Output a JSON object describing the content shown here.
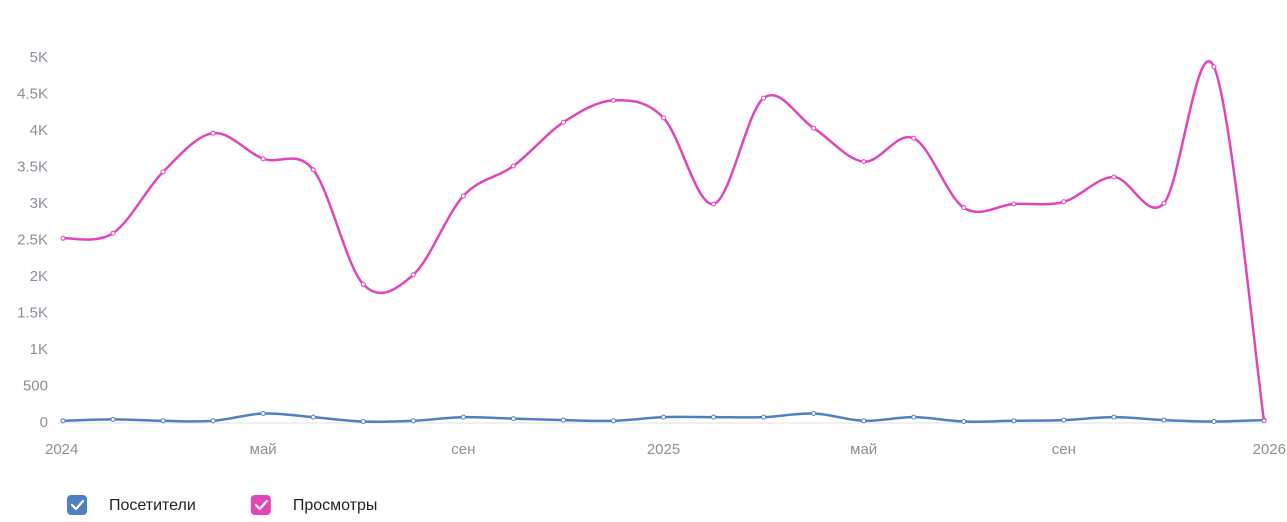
{
  "chart_data": {
    "type": "line",
    "categories": [
      "2024",
      null,
      null,
      null,
      "май",
      null,
      null,
      null,
      "сен",
      null,
      null,
      null,
      "2025",
      null,
      null,
      null,
      "май",
      null,
      null,
      null,
      "сен",
      null,
      null,
      null,
      "2026"
    ],
    "series": [
      {
        "name": "Посетители",
        "color": "#5080bf",
        "values": [
          30,
          50,
          30,
          30,
          130,
          80,
          20,
          30,
          80,
          60,
          40,
          30,
          80,
          80,
          80,
          130,
          30,
          80,
          20,
          30,
          40,
          80,
          40,
          20,
          40
        ]
      },
      {
        "name": "Просмотры",
        "color": "#e245b9",
        "values": [
          2530,
          2600,
          3440,
          3970,
          3620,
          3470,
          1900,
          2030,
          3110,
          3520,
          4120,
          4420,
          4180,
          3000,
          4450,
          4040,
          3580,
          3900,
          2950,
          3000,
          3030,
          3370,
          3010,
          4880,
          30
        ]
      }
    ],
    "ylim": [
      0,
      5000
    ],
    "yticks": [
      0,
      500,
      {
        "value": 1000,
        "label": "1K"
      },
      {
        "value": 1500,
        "label": "1.5K"
      },
      {
        "value": 2000,
        "label": "2K"
      },
      {
        "value": 2500,
        "label": "2.5K"
      },
      {
        "value": 3000,
        "label": "3K"
      },
      {
        "value": 3500,
        "label": "3.5K"
      },
      {
        "value": 4000,
        "label": "4K"
      },
      {
        "value": 4500,
        "label": "4.5K"
      },
      {
        "value": 5000,
        "label": "5K"
      }
    ],
    "grid": false,
    "legend": "bottom-left"
  }
}
